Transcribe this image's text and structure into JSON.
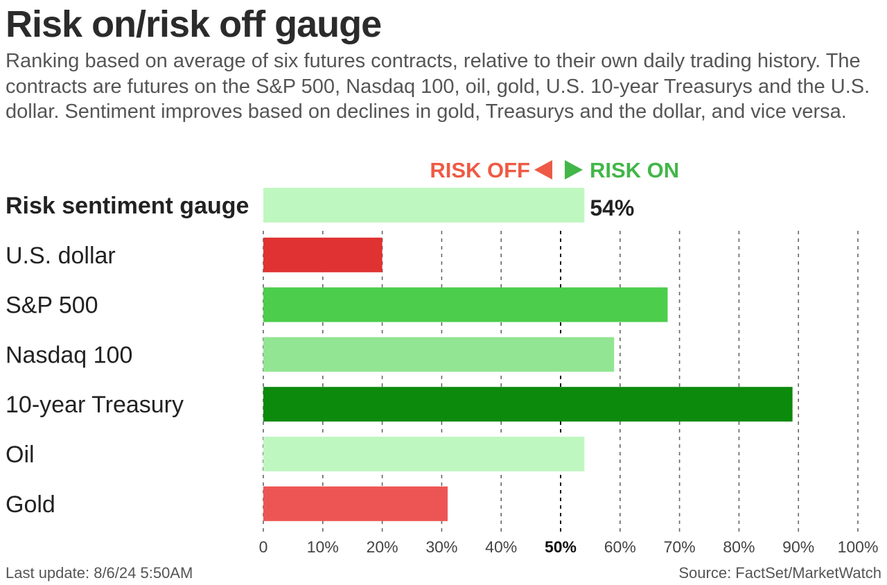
{
  "title": "Risk on/risk off gauge",
  "subtitle": "Ranking based on average of six futures contracts, relative to their own daily trading history. The contracts are futures on the S&P 500, Nasdaq 100, oil, gold, U.S. 10-year Treasurys and the U.S. dollar. Sentiment improves based on declines in gold, Treasurys and the dollar, and vice versa.",
  "footer": {
    "last_update": "Last update: 8/6/24 5:50AM",
    "source": "Source: FactSet/MarketWatch"
  },
  "chart_data": {
    "type": "bar",
    "orientation": "horizontal",
    "direction_labels": {
      "off": "RISK OFF",
      "on": "RISK ON"
    },
    "categories": [
      "Risk sentiment gauge",
      "U.S. dollar",
      "S&P 500",
      "Nasdaq 100",
      "10-year Treasury",
      "Oil",
      "Gold"
    ],
    "values": [
      54,
      20,
      68,
      59,
      89,
      54,
      31
    ],
    "bar_colors": [
      "#bff7c0",
      "#e03232",
      "#4ccd4c",
      "#92e592",
      "#0c8a0c",
      "#bff7c0",
      "#ed5555"
    ],
    "highlight": {
      "category": "Risk sentiment gauge",
      "value_label": "54%"
    },
    "xlim": [
      0,
      100
    ],
    "xticks": [
      0,
      10,
      20,
      30,
      40,
      50,
      60,
      70,
      80,
      90,
      100
    ],
    "xtick_labels": [
      "0",
      "10%",
      "20%",
      "30%",
      "40%",
      "50%",
      "60%",
      "70%",
      "80%",
      "90%",
      "100%"
    ],
    "midline": 50,
    "grid": true
  },
  "colors": {
    "risk_off": "#ee5a45",
    "risk_on": "#42b649",
    "gridline": "#666666"
  }
}
